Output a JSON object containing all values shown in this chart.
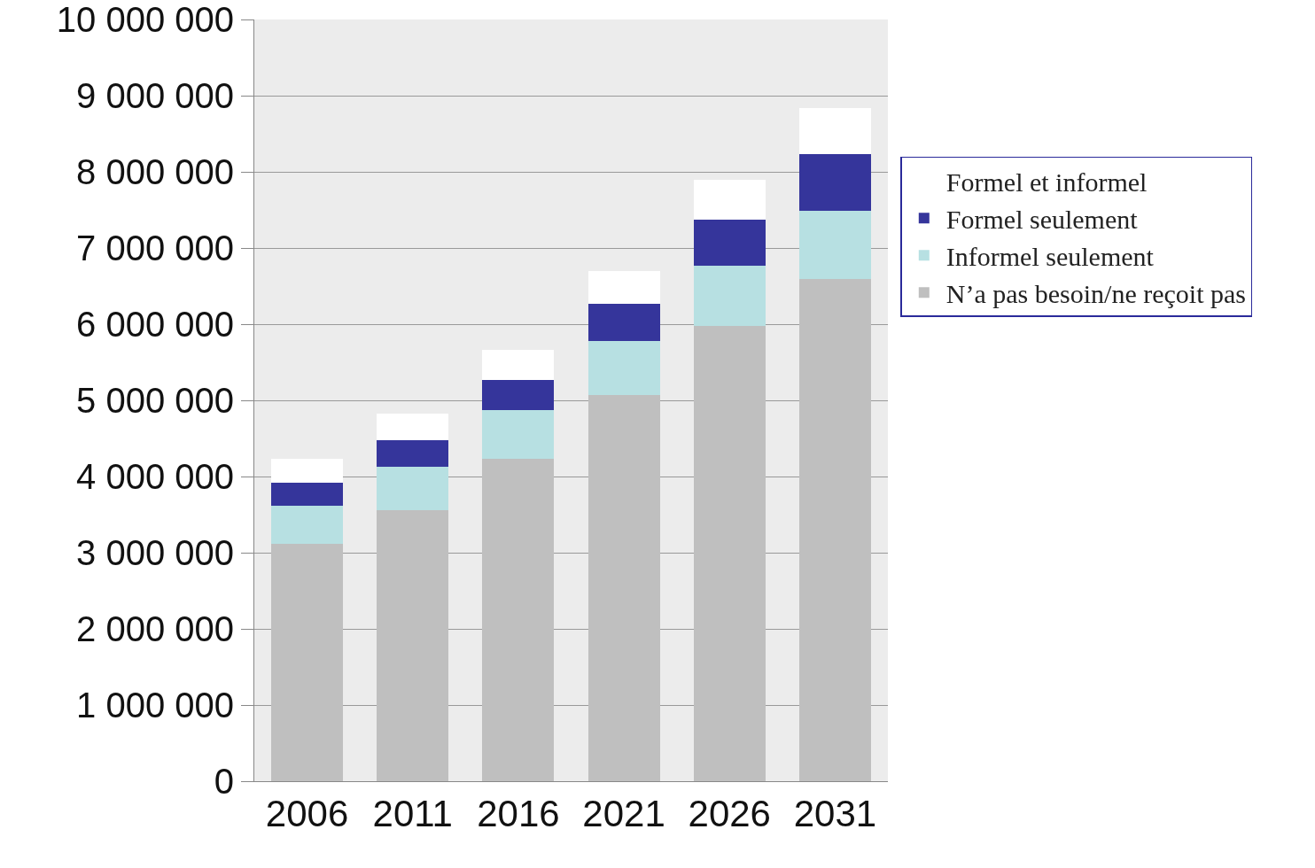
{
  "chart_data": {
    "type": "bar",
    "stacked": true,
    "categories": [
      "2006",
      "2011",
      "2016",
      "2021",
      "2026",
      "2031"
    ],
    "series": [
      {
        "name": "N’a pas besoin/ne reçoit pas",
        "color": "#bfbfbf",
        "values": [
          3120000,
          3560000,
          4230000,
          5070000,
          5980000,
          6590000
        ]
      },
      {
        "name": "Informel seulement",
        "color": "#b7e0e2",
        "values": [
          500000,
          570000,
          640000,
          710000,
          790000,
          900000
        ]
      },
      {
        "name": "Formel seulement",
        "color": "#35359b",
        "values": [
          300000,
          350000,
          400000,
          490000,
          600000,
          740000
        ]
      },
      {
        "name": "Formel et informel",
        "color": "#ffffff",
        "values": [
          310000,
          350000,
          390000,
          430000,
          530000,
          610000
        ]
      }
    ],
    "ylim": [
      0,
      10000000
    ],
    "yticks": [
      0,
      {
        "value": 1000000,
        "label": "1 000 000"
      },
      {
        "value": 2000000,
        "label": "2 000 000"
      },
      {
        "value": 3000000,
        "label": "3 000 000"
      },
      {
        "value": 4000000,
        "label": "4 000 000"
      },
      {
        "value": 5000000,
        "label": "5 000 000"
      },
      {
        "value": 6000000,
        "label": "6 000 000"
      },
      {
        "value": 7000000,
        "label": "7 000 000"
      },
      {
        "value": 8000000,
        "label": "8 000 000"
      },
      {
        "value": 9000000,
        "label": "9 000 000"
      },
      {
        "value": 10000000,
        "label": "10 000 000"
      }
    ],
    "grid": "y",
    "legend": "right"
  }
}
